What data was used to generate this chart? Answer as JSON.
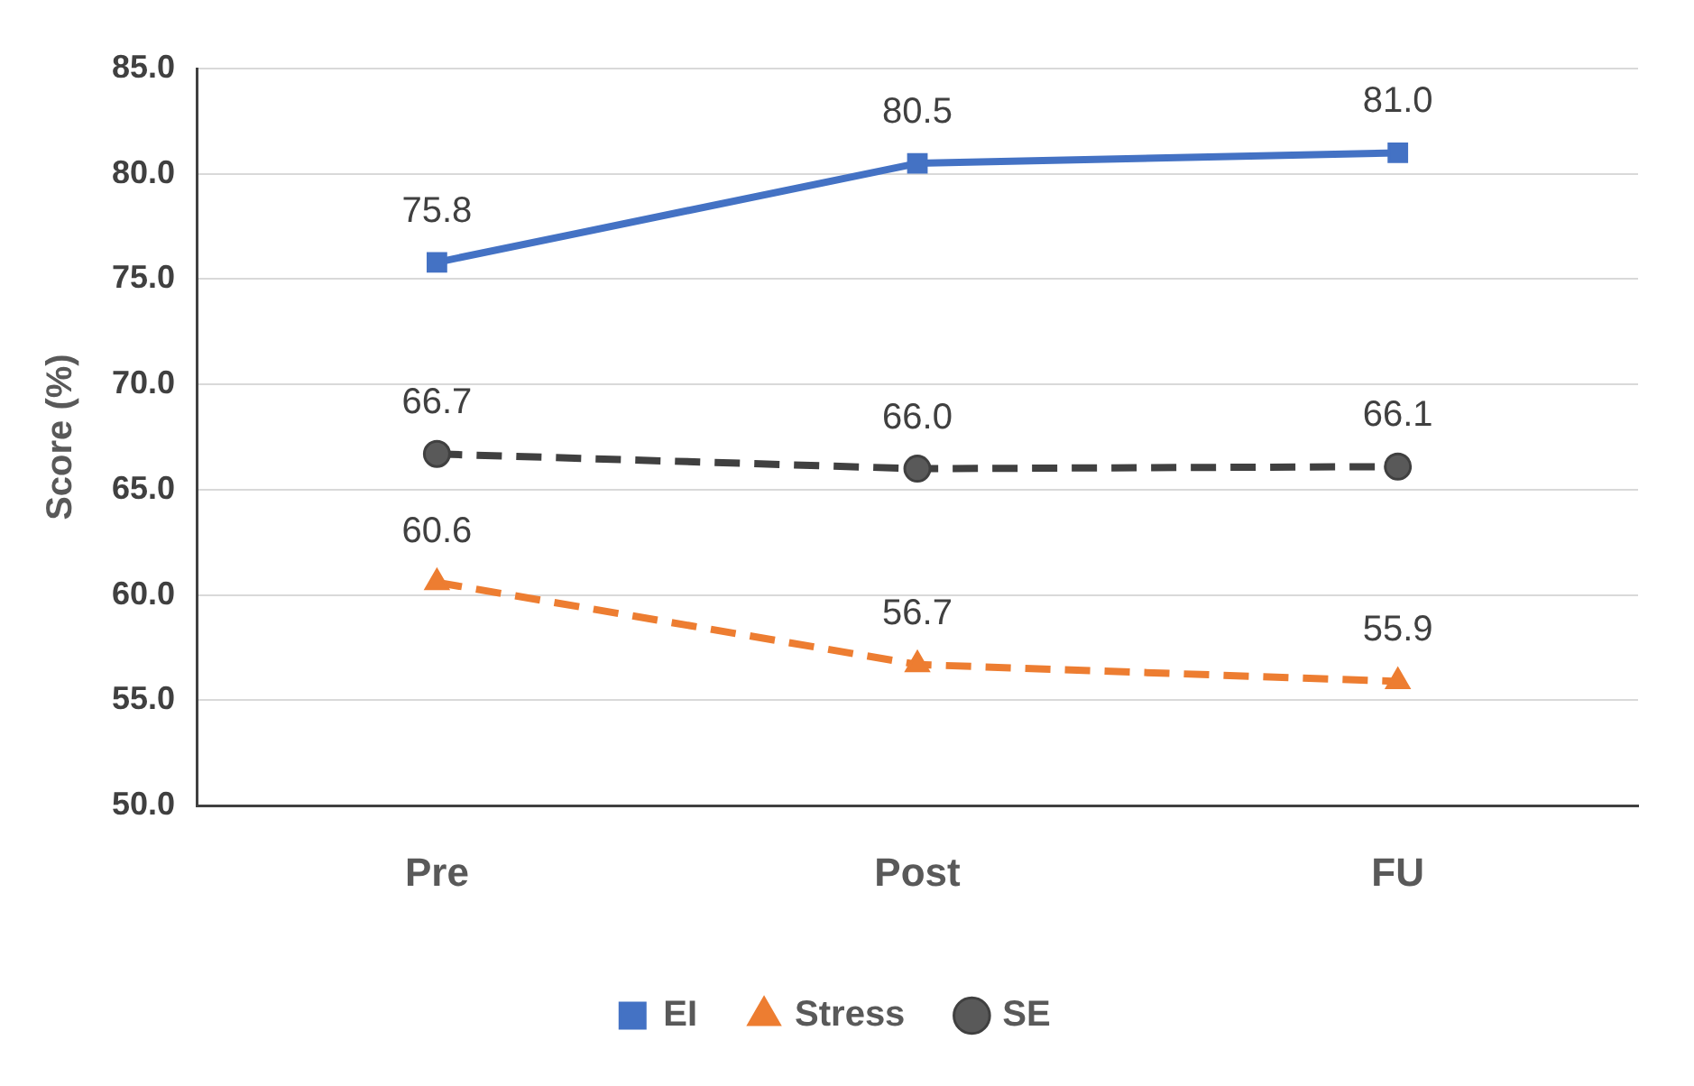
{
  "chart_data": {
    "type": "line",
    "ylabel": "Score (%)",
    "categories": [
      "Pre",
      "Post",
      "FU"
    ],
    "series": [
      {
        "name": "EI",
        "color": "#4472c4",
        "values": [
          75.8,
          80.5,
          81.0
        ],
        "value_labels": [
          "75.8",
          "80.5",
          "81.0"
        ],
        "marker": "square",
        "line_style": "solid"
      },
      {
        "name": "Stress",
        "color": "#ed7d31",
        "values": [
          60.6,
          56.7,
          55.9
        ],
        "value_labels": [
          "60.6",
          "56.7",
          "55.9"
        ],
        "marker": "triangle",
        "line_style": "dashed"
      },
      {
        "name": "SE",
        "color": "#404040",
        "values": [
          66.7,
          66.0,
          66.1
        ],
        "value_labels": [
          "66.7",
          "66.0",
          "66.1"
        ],
        "marker": "circle",
        "line_style": "dashed"
      }
    ],
    "ylim": [
      50,
      85
    ],
    "yticks": [
      {
        "value": 50,
        "label": "50.0"
      },
      {
        "value": 55,
        "label": "55.0"
      },
      {
        "value": 60,
        "label": "60.0"
      },
      {
        "value": 65,
        "label": "65.0"
      },
      {
        "value": 70,
        "label": "70.0"
      },
      {
        "value": 75,
        "label": "75.0"
      },
      {
        "value": 80,
        "label": "80.0"
      },
      {
        "value": 85,
        "label": "85.0"
      }
    ],
    "grid": "y",
    "legend": "bottom"
  }
}
